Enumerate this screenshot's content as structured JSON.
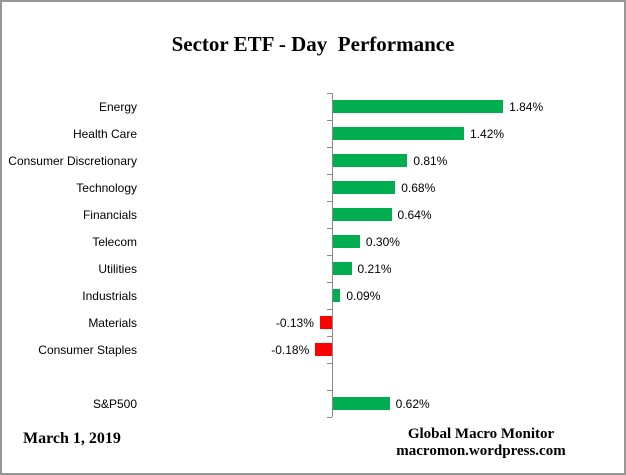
{
  "chart": {
    "title": "Sector ETF - Day  Performance",
    "date": "March 1, 2019",
    "source": {
      "line1": "Global Macro Monitor",
      "line2": "macromon.wordpress.com"
    },
    "positive_color": "#00AE50",
    "negative_color": "#FF0000",
    "axis_color": "#8a8a8a"
  },
  "chart_data": {
    "type": "bar",
    "orientation": "horizontal",
    "title": "Sector ETF - Day  Performance",
    "xlabel": "",
    "ylabel": "",
    "grid": false,
    "legend": false,
    "value_axis_ticks_labeled": false,
    "categories": [
      "Energy",
      "Health Care",
      "Consumer Discretionary",
      "Technology",
      "Financials",
      "Telecom",
      "Utilities",
      "Industrials",
      "Materials",
      "Consumer Staples",
      "",
      "S&P500"
    ],
    "values": [
      1.84,
      1.42,
      0.81,
      0.68,
      0.64,
      0.3,
      0.21,
      0.09,
      -0.13,
      -0.18,
      null,
      0.62
    ],
    "value_labels": [
      "1.84%",
      "1.42%",
      "0.81%",
      "0.68%",
      "0.64%",
      "0.30%",
      "0.21%",
      "0.09%",
      "-0.13%",
      "-0.18%",
      "",
      "0.62%"
    ],
    "color_rule": "green if positive, red if negative"
  }
}
